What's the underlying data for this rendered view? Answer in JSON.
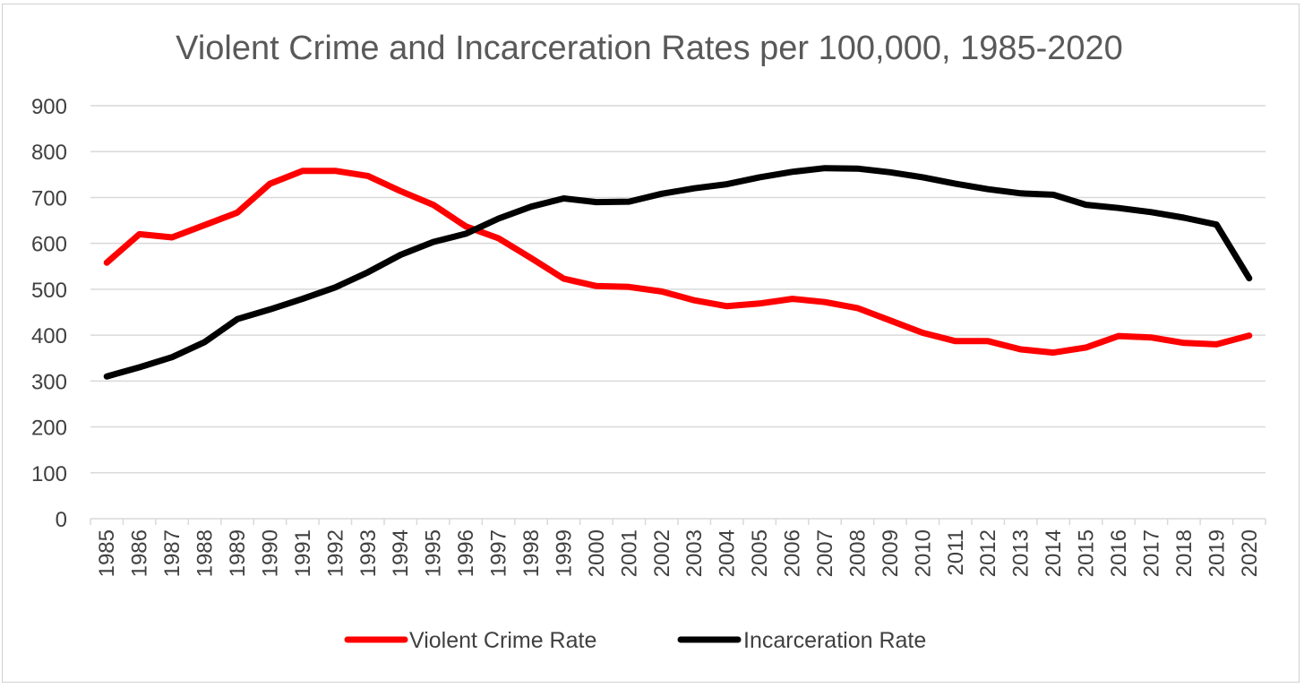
{
  "chart_data": {
    "type": "line",
    "title": "Violent Crime and Incarceration Rates per 100,000, 1985-2020",
    "xlabel": "",
    "ylabel": "",
    "ylim": [
      0,
      900
    ],
    "yticks": [
      0,
      100,
      200,
      300,
      400,
      500,
      600,
      700,
      800,
      900
    ],
    "grid": true,
    "legend_position": "bottom",
    "categories": [
      "1985",
      "1986",
      "1987",
      "1988",
      "1989",
      "1990",
      "1991",
      "1992",
      "1993",
      "1994",
      "1995",
      "1996",
      "1997",
      "1998",
      "1999",
      "2000",
      "2001",
      "2002",
      "2003",
      "2004",
      "2005",
      "2006",
      "2007",
      "2008",
      "2009",
      "2010",
      "2011",
      "2012",
      "2013",
      "2014",
      "2015",
      "2016",
      "2017",
      "2018",
      "2019",
      "2020"
    ],
    "series": [
      {
        "name": "Violent Crime Rate",
        "color": "#ff0000",
        "values": [
          558,
          620,
          613,
          640,
          667,
          730,
          758,
          758,
          747,
          714,
          684,
          637,
          611,
          568,
          523,
          507,
          505,
          495,
          476,
          463,
          469,
          479,
          472,
          459,
          432,
          405,
          387,
          387,
          369,
          362,
          373,
          398,
          395,
          383,
          380,
          399
        ]
      },
      {
        "name": "Incarceration Rate",
        "color": "#000000",
        "values": [
          310,
          330,
          352,
          385,
          435,
          456,
          479,
          504,
          537,
          575,
          603,
          621,
          654,
          680,
          698,
          690,
          691,
          708,
          720,
          729,
          744,
          756,
          764,
          763,
          755,
          744,
          730,
          718,
          709,
          706,
          684,
          677,
          668,
          656,
          641,
          524
        ]
      }
    ]
  }
}
